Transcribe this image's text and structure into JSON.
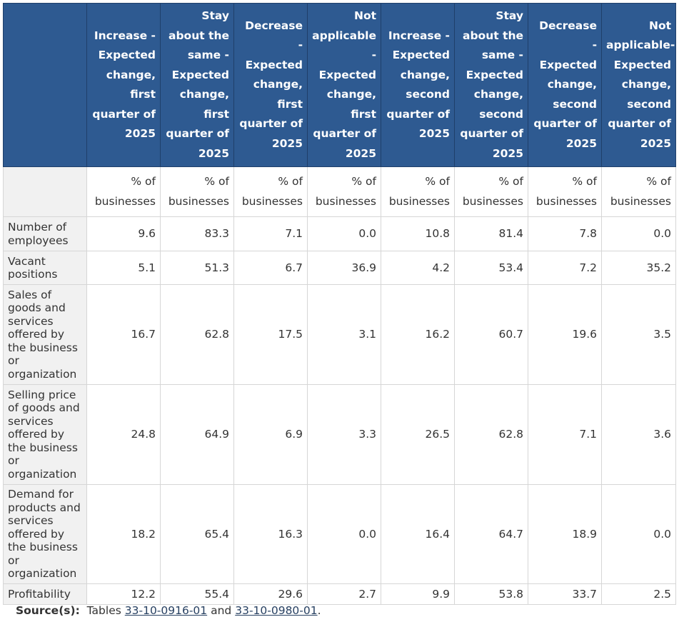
{
  "headers": [
    "",
    "Increase - Expected change, first quarter of 2025",
    "Stay about the same - Expected change, first quarter of 2025",
    "Decrease - Expected change, first quarter of 2025",
    "Not applicable - Expected change, first quarter of 2025",
    "Increase - Expected change, second quarter of 2025",
    "Stay about the same - Expected change, second quarter of 2025",
    "Decrease - Expected change, second quarter of 2025",
    "Not applicable- Expected change, second quarter of 2025"
  ],
  "unit_label": "% of businesses",
  "rows": [
    {
      "label": "Number of employees",
      "values": [
        "9.6",
        "83.3",
        "7.1",
        "0.0",
        "10.8",
        "81.4",
        "7.8",
        "0.0"
      ]
    },
    {
      "label": "Vacant positions",
      "values": [
        "5.1",
        "51.3",
        "6.7",
        "36.9",
        "4.2",
        "53.4",
        "7.2",
        "35.2"
      ]
    },
    {
      "label": "Sales of goods and services offered by the business or organization",
      "values": [
        "16.7",
        "62.8",
        "17.5",
        "3.1",
        "16.2",
        "60.7",
        "19.6",
        "3.5"
      ]
    },
    {
      "label": "Selling price of goods and services offered by the business or organization",
      "values": [
        "24.8",
        "64.9",
        "6.9",
        "3.3",
        "26.5",
        "62.8",
        "7.1",
        "3.6"
      ]
    },
    {
      "label": "Demand for products and services offered by the business or organization",
      "values": [
        "18.2",
        "65.4",
        "16.3",
        "0.0",
        "16.4",
        "64.7",
        "18.9",
        "0.0"
      ]
    },
    {
      "label": "Profitability",
      "values": [
        "12.2",
        "55.4",
        "29.6",
        "2.7",
        "9.9",
        "53.8",
        "33.7",
        "2.5"
      ]
    }
  ],
  "source": {
    "label": "Source(s):",
    "prefix": "Tables",
    "link1": "33-10-0916-01",
    "middle": "and",
    "link2": "33-10-0980-01",
    "suffix": "."
  }
}
